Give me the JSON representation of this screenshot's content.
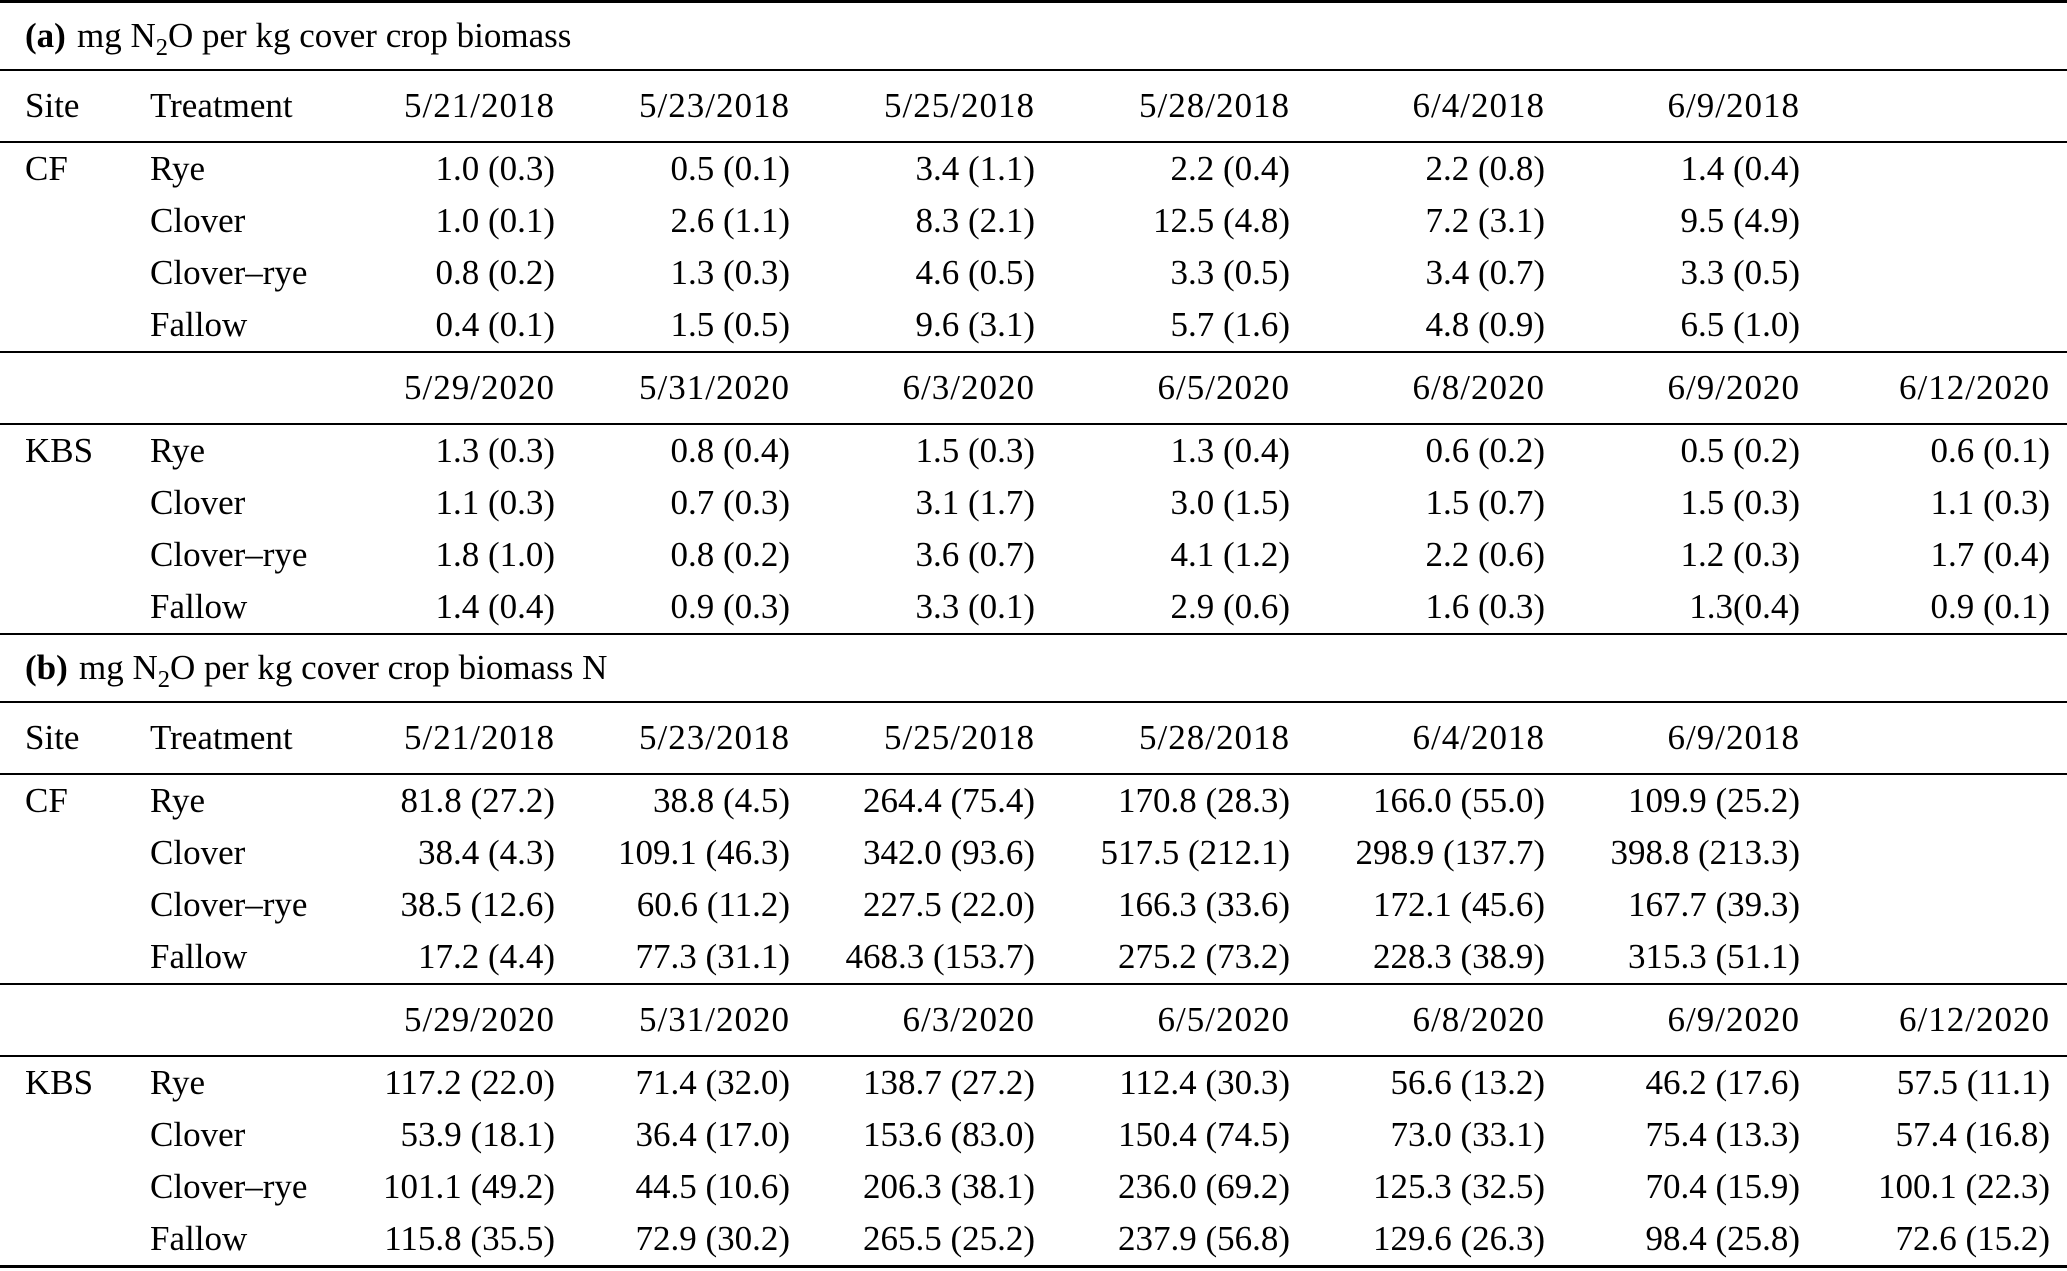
{
  "page": {
    "background_color": "#ffffff",
    "text_color": "#000000",
    "rule_color": "#000000"
  },
  "sections": [
    {
      "label": "(a)",
      "title_prefix": "mg N",
      "title_sub": "2",
      "title_suffix": "O per kg cover crop biomass",
      "header1": {
        "site": "Site",
        "treatment": "Treatment",
        "dates": [
          "5/21/2018",
          "5/23/2018",
          "5/25/2018",
          "5/28/2018",
          "6/4/2018",
          "6/9/2018",
          ""
        ]
      },
      "group1": {
        "site": "CF",
        "rows": [
          {
            "treatment": "Rye",
            "values": [
              "1.0 (0.3)",
              "0.5 (0.1)",
              "3.4 (1.1)",
              "2.2 (0.4)",
              "2.2 (0.8)",
              "1.4 (0.4)"
            ]
          },
          {
            "treatment": "Clover",
            "values": [
              "1.0 (0.1)",
              "2.6 (1.1)",
              "8.3 (2.1)",
              "12.5 (4.8)",
              "7.2 (3.1)",
              "9.5 (4.9)"
            ]
          },
          {
            "treatment": "Clover–rye",
            "values": [
              "0.8 (0.2)",
              "1.3 (0.3)",
              "4.6 (0.5)",
              "3.3 (0.5)",
              "3.4 (0.7)",
              "3.3 (0.5)"
            ]
          },
          {
            "treatment": "Fallow",
            "values": [
              "0.4 (0.1)",
              "1.5 (0.5)",
              "9.6 (3.1)",
              "5.7 (1.6)",
              "4.8 (0.9)",
              "6.5 (1.0)"
            ]
          }
        ]
      },
      "header2": {
        "site": "",
        "treatment": "",
        "dates": [
          "5/29/2020",
          "5/31/2020",
          "6/3/2020",
          "6/5/2020",
          "6/8/2020",
          "6/9/2020",
          "6/12/2020"
        ]
      },
      "group2": {
        "site": "KBS",
        "rows": [
          {
            "treatment": "Rye",
            "values": [
              "1.3 (0.3)",
              "0.8 (0.4)",
              "1.5 (0.3)",
              "1.3 (0.4)",
              "0.6 (0.2)",
              "0.5 (0.2)",
              "0.6 (0.1)"
            ]
          },
          {
            "treatment": "Clover",
            "values": [
              "1.1 (0.3)",
              "0.7 (0.3)",
              "3.1 (1.7)",
              "3.0 (1.5)",
              "1.5 (0.7)",
              "1.5 (0.3)",
              "1.1 (0.3)"
            ]
          },
          {
            "treatment": "Clover–rye",
            "values": [
              "1.8 (1.0)",
              "0.8 (0.2)",
              "3.6 (0.7)",
              "4.1 (1.2)",
              "2.2 (0.6)",
              "1.2 (0.3)",
              "1.7 (0.4)"
            ]
          },
          {
            "treatment": "Fallow",
            "values": [
              "1.4 (0.4)",
              "0.9 (0.3)",
              "3.3 (0.1)",
              "2.9 (0.6)",
              "1.6 (0.3)",
              "1.3(0.4)",
              "0.9 (0.1)"
            ]
          }
        ]
      }
    },
    {
      "label": "(b)",
      "title_prefix": "mg N",
      "title_sub": "2",
      "title_suffix": "O per kg cover crop biomass N",
      "header1": {
        "site": "Site",
        "treatment": "Treatment",
        "dates": [
          "5/21/2018",
          "5/23/2018",
          "5/25/2018",
          "5/28/2018",
          "6/4/2018",
          "6/9/2018",
          ""
        ]
      },
      "group1": {
        "site": "CF",
        "rows": [
          {
            "treatment": "Rye",
            "values": [
              "81.8 (27.2)",
              "38.8 (4.5)",
              "264.4 (75.4)",
              "170.8 (28.3)",
              "166.0 (55.0)",
              "109.9 (25.2)"
            ]
          },
          {
            "treatment": "Clover",
            "values": [
              "38.4 (4.3)",
              "109.1 (46.3)",
              "342.0 (93.6)",
              "517.5 (212.1)",
              "298.9 (137.7)",
              "398.8 (213.3)"
            ]
          },
          {
            "treatment": "Clover–rye",
            "values": [
              "38.5 (12.6)",
              "60.6 (11.2)",
              "227.5 (22.0)",
              "166.3 (33.6)",
              "172.1 (45.6)",
              "167.7 (39.3)"
            ]
          },
          {
            "treatment": "Fallow",
            "values": [
              "17.2 (4.4)",
              "77.3 (31.1)",
              "468.3 (153.7)",
              "275.2 (73.2)",
              "228.3 (38.9)",
              "315.3 (51.1)"
            ]
          }
        ]
      },
      "header2": {
        "site": "",
        "treatment": "",
        "dates": [
          "5/29/2020",
          "5/31/2020",
          "6/3/2020",
          "6/5/2020",
          "6/8/2020",
          "6/9/2020",
          "6/12/2020"
        ]
      },
      "group2": {
        "site": "KBS",
        "rows": [
          {
            "treatment": "Rye",
            "values": [
              "117.2 (22.0)",
              "71.4 (32.0)",
              "138.7 (27.2)",
              "112.4 (30.3)",
              "56.6 (13.2)",
              "46.2 (17.6)",
              "57.5 (11.1)"
            ]
          },
          {
            "treatment": "Clover",
            "values": [
              "53.9 (18.1)",
              "36.4 (17.0)",
              "153.6 (83.0)",
              "150.4 (74.5)",
              "73.0 (33.1)",
              "75.4 (13.3)",
              "57.4 (16.8)"
            ]
          },
          {
            "treatment": "Clover–rye",
            "values": [
              "101.1 (49.2)",
              "44.5 (10.6)",
              "206.3 (38.1)",
              "236.0 (69.2)",
              "125.3 (32.5)",
              "70.4 (15.9)",
              "100.1 (22.3)"
            ]
          },
          {
            "treatment": "Fallow",
            "values": [
              "115.8 (35.5)",
              "72.9 (30.2)",
              "265.5 (25.2)",
              "237.9 (56.8)",
              "129.6 (26.3)",
              "98.4 (25.8)",
              "72.6 (15.2)"
            ]
          }
        ]
      }
    }
  ]
}
